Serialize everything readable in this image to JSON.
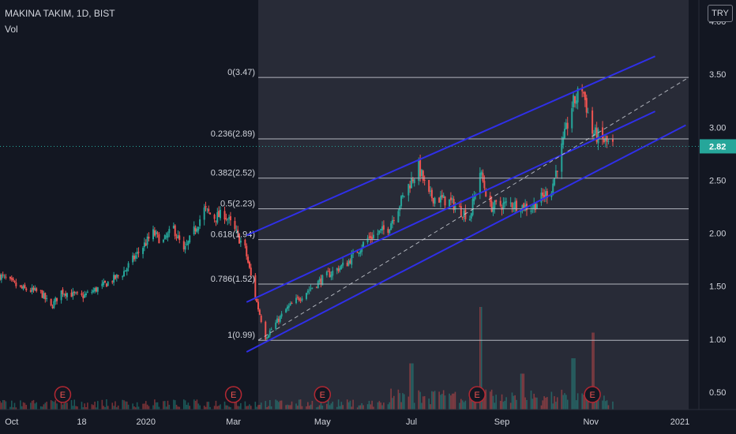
{
  "header": {
    "title": "MAKINA TAKIM, 1D, BIST",
    "indicator": "Vol",
    "currency": "TRY"
  },
  "last_price": "2.82",
  "colors": {
    "up": "#26a69a",
    "down": "#ef5350",
    "channel": "#2f2fe8",
    "fib_line": "#b2b5be",
    "last_price": "#26a69a"
  },
  "events_label": "E",
  "chart_data": {
    "type": "candlestick",
    "title": "MAKINA TAKIM, 1D, BIST",
    "xlabel": "",
    "ylabel": "",
    "ylim": [
      0.3,
      4.1
    ],
    "y_ticks": [
      "0.50",
      "1.00",
      "1.50",
      "2.00",
      "2.50",
      "3.00",
      "3.50",
      "4.00"
    ],
    "x_range": [
      "2019-09-23",
      "2021-01-14"
    ],
    "x_ticks": [
      {
        "date": "2019-10-01",
        "label": "Oct"
      },
      {
        "date": "2019-11-18",
        "label": "18"
      },
      {
        "date": "2020-01-01",
        "label": "2020"
      },
      {
        "date": "2020-03-01",
        "label": "Mar"
      },
      {
        "date": "2020-05-01",
        "label": "May"
      },
      {
        "date": "2020-07-01",
        "label": "Jul"
      },
      {
        "date": "2020-09-01",
        "label": "Sep"
      },
      {
        "date": "2020-11-01",
        "label": "Nov"
      },
      {
        "date": "2021-01-01",
        "label": "2021"
      }
    ],
    "price_path": [
      [
        "2019-09-23",
        1.6
      ],
      [
        "2019-10-07",
        1.48
      ],
      [
        "2019-10-21",
        1.44
      ],
      [
        "2019-10-28",
        1.3
      ],
      [
        "2019-11-04",
        1.45
      ],
      [
        "2019-11-18",
        1.4
      ],
      [
        "2019-12-02",
        1.5
      ],
      [
        "2019-12-16",
        1.62
      ],
      [
        "2019-12-23",
        1.75
      ],
      [
        "2020-01-06",
        2.0
      ],
      [
        "2020-01-13",
        1.92
      ],
      [
        "2020-01-20",
        2.05
      ],
      [
        "2020-01-27",
        1.82
      ],
      [
        "2020-02-03",
        2.02
      ],
      [
        "2020-02-10",
        2.22
      ],
      [
        "2020-02-17",
        2.15
      ],
      [
        "2020-02-24",
        2.18
      ],
      [
        "2020-03-02",
        2.02
      ],
      [
        "2020-03-09",
        1.85
      ],
      [
        "2020-03-16",
        1.4
      ],
      [
        "2020-03-23",
        1.02
      ],
      [
        "2020-04-06",
        1.28
      ],
      [
        "2020-04-20",
        1.45
      ],
      [
        "2020-05-04",
        1.6
      ],
      [
        "2020-05-18",
        1.72
      ],
      [
        "2020-06-01",
        1.95
      ],
      [
        "2020-06-15",
        2.05
      ],
      [
        "2020-06-29",
        2.45
      ],
      [
        "2020-07-06",
        2.62
      ],
      [
        "2020-07-13",
        2.35
      ],
      [
        "2020-07-27",
        2.3
      ],
      [
        "2020-08-10",
        2.15
      ],
      [
        "2020-08-17",
        2.58
      ],
      [
        "2020-08-24",
        2.25
      ],
      [
        "2020-09-07",
        2.28
      ],
      [
        "2020-09-21",
        2.24
      ],
      [
        "2020-10-05",
        2.42
      ],
      [
        "2020-10-12",
        2.8
      ],
      [
        "2020-10-19",
        3.2
      ],
      [
        "2020-10-26",
        3.38
      ],
      [
        "2020-11-02",
        2.95
      ],
      [
        "2020-11-09",
        2.88
      ],
      [
        "2020-11-16",
        2.82
      ]
    ],
    "last_price": 2.82,
    "fibonacci": {
      "start_date": "2020-03-18",
      "end_date": "2021-01-07",
      "levels": [
        {
          "label": "0(3.47)",
          "value": 3.47
        },
        {
          "label": "0.236(2.89)",
          "value": 2.89
        },
        {
          "label": "0.382(2.52)",
          "value": 2.52
        },
        {
          "label": "0.5(2.23)",
          "value": 2.23
        },
        {
          "label": "0.618(1.94)",
          "value": 1.94
        },
        {
          "label": "0.786(1.52)",
          "value": 1.52
        },
        {
          "label": "1(0.99)",
          "value": 0.99
        }
      ]
    },
    "channel": {
      "lines": [
        {
          "name": "upper",
          "points": [
            [
              "2020-03-10",
              1.98
            ],
            [
              "2020-12-15",
              3.67
            ]
          ]
        },
        {
          "name": "middle",
          "points": [
            [
              "2020-03-10",
              1.35
            ],
            [
              "2020-12-15",
              3.15
            ]
          ]
        },
        {
          "name": "lower",
          "points": [
            [
              "2020-03-10",
              0.88
            ],
            [
              "2021-01-05",
              3.02
            ]
          ]
        }
      ],
      "trend": {
        "points": [
          [
            "2020-03-18",
            0.99
          ],
          [
            "2021-01-07",
            3.47
          ]
        ]
      }
    },
    "earnings_events": [
      "2019-11-05",
      "2020-03-01",
      "2020-05-01",
      "2020-08-15",
      "2020-11-02"
    ],
    "volume_spikes": [
      [
        "2020-08-17",
        1.0
      ],
      [
        "2020-11-02",
        0.75
      ],
      [
        "2020-07-01",
        0.45
      ],
      [
        "2020-10-20",
        0.5
      ],
      [
        "2020-09-15",
        0.35
      ]
    ],
    "grid": false,
    "legend": "none"
  }
}
